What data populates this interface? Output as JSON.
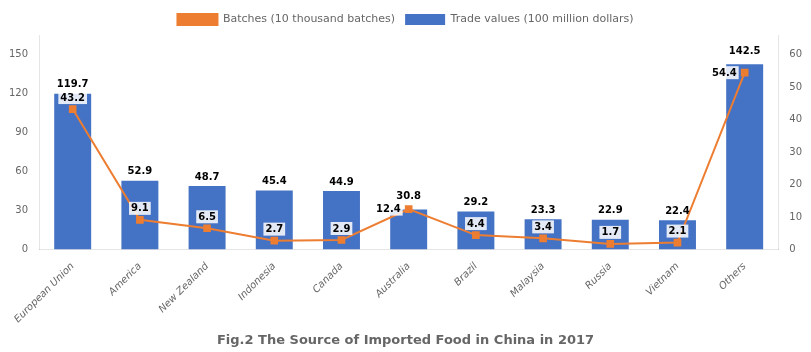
{
  "chart_data": {
    "type": "bar",
    "title": "Fig.2 The Source of Imported Food in China in 2017",
    "categories": [
      "European Union",
      "America",
      "New Zealand",
      "Indonesia",
      "Canada",
      "Australia",
      "Brazil",
      "Malaysia",
      "Russia",
      "Vietnam",
      "Others"
    ],
    "series": [
      {
        "name": "Trade values (100 million dollars)",
        "type": "bar",
        "color": "#4472C4",
        "values": [
          119.7,
          52.9,
          48.7,
          45.4,
          44.9,
          30.8,
          29.2,
          23.3,
          22.9,
          22.4,
          142.5
        ]
      },
      {
        "name": "Batches (10 thousand batches)",
        "type": "line",
        "axis": "y2",
        "color": "#ED7D31",
        "marker": "square",
        "values": [
          43.2,
          9.1,
          6.5,
          2.7,
          2.9,
          12.4,
          4.4,
          3.4,
          1.7,
          2.1,
          54.4
        ]
      }
    ],
    "ylim": [
      0,
      165
    ],
    "yticks": [
      0,
      30,
      60,
      90,
      120,
      150
    ],
    "y2lim": [
      0,
      66
    ],
    "y2ticks": [
      0,
      10,
      20,
      30,
      40,
      50,
      60
    ],
    "data_labels": true,
    "legend": "top",
    "grid": false
  }
}
